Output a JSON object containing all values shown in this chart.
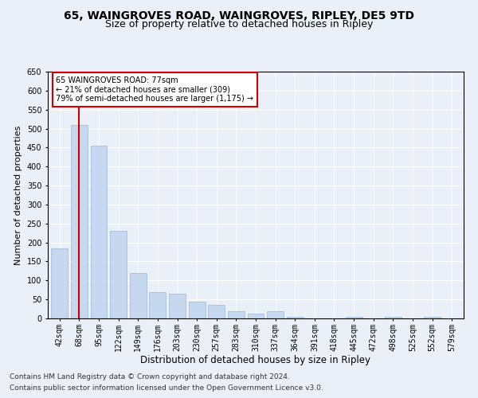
{
  "title1": "65, WAINGROVES ROAD, WAINGROVES, RIPLEY, DE5 9TD",
  "title2": "Size of property relative to detached houses in Ripley",
  "xlabel": "Distribution of detached houses by size in Ripley",
  "ylabel": "Number of detached properties",
  "footer1": "Contains HM Land Registry data © Crown copyright and database right 2024.",
  "footer2": "Contains public sector information licensed under the Open Government Licence v3.0.",
  "annotation_line1": "65 WAINGROVES ROAD: 77sqm",
  "annotation_line2": "← 21% of detached houses are smaller (309)",
  "annotation_line3": "79% of semi-detached houses are larger (1,175) →",
  "bar_labels": [
    "42sqm",
    "68sqm",
    "95sqm",
    "122sqm",
    "149sqm",
    "176sqm",
    "203sqm",
    "230sqm",
    "257sqm",
    "283sqm",
    "310sqm",
    "337sqm",
    "364sqm",
    "391sqm",
    "418sqm",
    "445sqm",
    "472sqm",
    "498sqm",
    "525sqm",
    "552sqm",
    "579sqm"
  ],
  "bar_values": [
    185,
    510,
    455,
    230,
    120,
    70,
    65,
    45,
    35,
    18,
    12,
    18,
    5,
    0,
    0,
    5,
    0,
    4,
    0,
    5,
    0
  ],
  "bar_color": "#c5d8f0",
  "bar_edge_color": "#9ab8d8",
  "vline_x": 1,
  "vline_color": "#cc0000",
  "ylim": [
    0,
    650
  ],
  "yticks": [
    0,
    50,
    100,
    150,
    200,
    250,
    300,
    350,
    400,
    450,
    500,
    550,
    600,
    650
  ],
  "background_color": "#eaf0f8",
  "plot_bg_color": "#eaf0f8",
  "annotation_box_color": "#ffffff",
  "annotation_box_edge": "#cc0000",
  "title1_fontsize": 10,
  "title2_fontsize": 9,
  "xlabel_fontsize": 8.5,
  "ylabel_fontsize": 8,
  "tick_fontsize": 7,
  "footer_fontsize": 6.5
}
